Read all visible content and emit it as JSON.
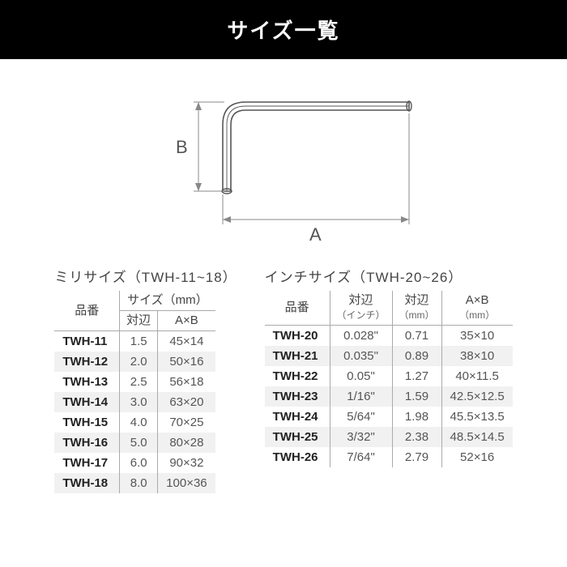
{
  "header": {
    "title": "サイズ一覧"
  },
  "diagram": {
    "labelA": "A",
    "labelB": "B",
    "stroke": "#888",
    "tool_stroke": "#555",
    "font": "22px sans-serif",
    "font_fill": "#555"
  },
  "mm_table": {
    "title_prefix": "ミリサイズ",
    "title_range": "（TWH-11~18）",
    "col_part": "品番",
    "col_size_group": "サイズ（mm）",
    "col_af": "対辺",
    "col_ab": "A×B",
    "rows": [
      {
        "part": "TWH-11",
        "af": "1.5",
        "ab": "45×14"
      },
      {
        "part": "TWH-12",
        "af": "2.0",
        "ab": "50×16"
      },
      {
        "part": "TWH-13",
        "af": "2.5",
        "ab": "56×18"
      },
      {
        "part": "TWH-14",
        "af": "3.0",
        "ab": "63×20"
      },
      {
        "part": "TWH-15",
        "af": "4.0",
        "ab": "70×25"
      },
      {
        "part": "TWH-16",
        "af": "5.0",
        "ab": "80×28"
      },
      {
        "part": "TWH-17",
        "af": "6.0",
        "ab": "90×32"
      },
      {
        "part": "TWH-18",
        "af": "8.0",
        "ab": "100×36"
      }
    ]
  },
  "inch_table": {
    "title_prefix": "インチサイズ",
    "title_range": "（TWH-20~26）",
    "col_part": "品番",
    "col_af_in_1": "対辺",
    "col_af_in_2": "（インチ）",
    "col_af_mm_1": "対辺",
    "col_af_mm_2": "（mm）",
    "col_ab_1": "A×B",
    "col_ab_2": "（mm）",
    "rows": [
      {
        "part": "TWH-20",
        "af_in": "0.028\"",
        "af_mm": "0.71",
        "ab": "35×10"
      },
      {
        "part": "TWH-21",
        "af_in": "0.035\"",
        "af_mm": "0.89",
        "ab": "38×10"
      },
      {
        "part": "TWH-22",
        "af_in": "0.05\"",
        "af_mm": "1.27",
        "ab": "40×11.5"
      },
      {
        "part": "TWH-23",
        "af_in": "1/16\"",
        "af_mm": "1.59",
        "ab": "42.5×12.5"
      },
      {
        "part": "TWH-24",
        "af_in": "5/64\"",
        "af_mm": "1.98",
        "ab": "45.5×13.5"
      },
      {
        "part": "TWH-25",
        "af_in": "3/32\"",
        "af_mm": "2.38",
        "ab": "48.5×14.5"
      },
      {
        "part": "TWH-26",
        "af_in": "7/64\"",
        "af_mm": "2.79",
        "ab": "52×16"
      }
    ]
  }
}
